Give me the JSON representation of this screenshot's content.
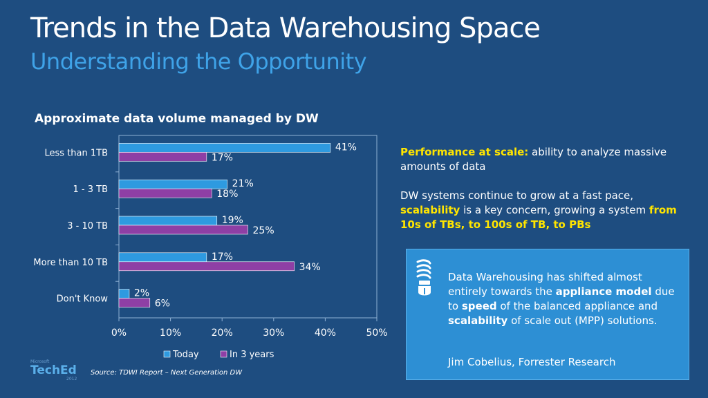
{
  "slide": {
    "title": "Trends in the Data Warehousing Space",
    "subtitle": "Understanding the Opportunity",
    "source": "Source: TDWI Report – Next Generation DW"
  },
  "logo": {
    "top": "Microsoft",
    "main": "TechEd",
    "year": "2012"
  },
  "right_text": {
    "line1_label": "Performance at scale:",
    "line1_rest": " ability to analyze massive amounts of data",
    "p2_start": "DW systems continue to grow at a fast pace, ",
    "p2_kw": "scalability",
    "p2_mid": " is a key concern, growing a system ",
    "p2_end": "from 10s of TBs, to 100s of TB, to PBs"
  },
  "callout": {
    "icon": "lightbulb-icon",
    "q1": "Data Warehousing has shifted almost entirely towards the ",
    "q_kw1": "appliance model",
    "q2": " due to ",
    "q_kw2": "speed",
    "q3": " of the balanced appliance and ",
    "q_kw3": "scalability",
    "q4": " of scale out (MPP) solutions.",
    "author": "Jim Cobelius, Forrester Research"
  },
  "chart_data": {
    "type": "bar",
    "orientation": "horizontal",
    "title": "Approximate data volume managed by DW",
    "categories": [
      "Less than 1TB",
      "1 - 3 TB",
      "3 - 10 TB",
      "More than 10 TB",
      "Don't Know"
    ],
    "series": [
      {
        "name": "Today",
        "values": [
          41,
          21,
          19,
          17,
          2
        ],
        "color": "#2e9ae0"
      },
      {
        "name": "In 3 years",
        "values": [
          17,
          18,
          25,
          34,
          6
        ],
        "color": "#8e3fa5"
      }
    ],
    "data_labels": [
      [
        "41%",
        "21%",
        "19%",
        "17%",
        "2%"
      ],
      [
        "17%",
        "18%",
        "25%",
        "34%",
        "6%"
      ]
    ],
    "xlim": [
      0,
      50
    ],
    "xticks": [
      "0%",
      "10%",
      "20%",
      "30%",
      "40%",
      "50%"
    ],
    "legend": "bottom",
    "grid": false,
    "plot_background": "#1e4d80"
  }
}
